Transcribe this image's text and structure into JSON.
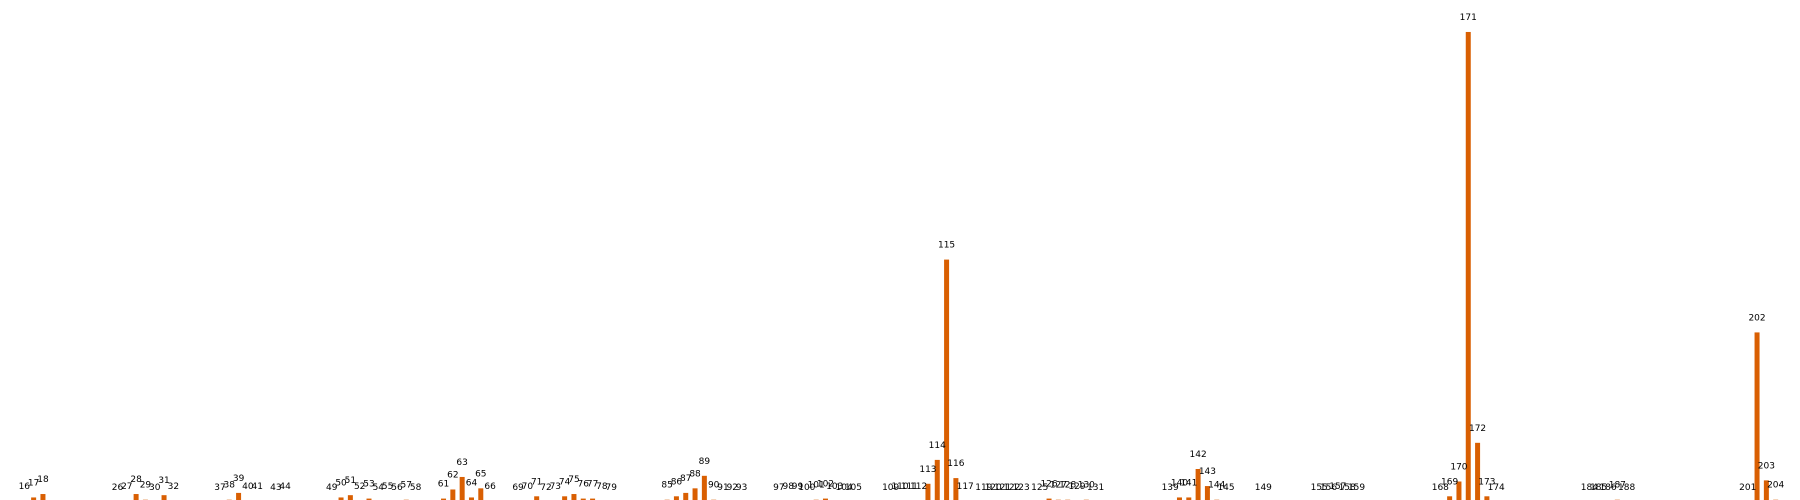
{
  "chart_data": {
    "type": "bar",
    "title": "",
    "xlabel": "",
    "ylabel": "",
    "grid": false,
    "legend": "none",
    "color": "#d95f02",
    "x_range": [
      15,
      205
    ],
    "ylim": [
      0,
      420
    ],
    "points": [
      {
        "x": 16,
        "label": "16",
        "value": 1
      },
      {
        "x": 17,
        "label": "17",
        "value": 4
      },
      {
        "x": 18,
        "label": "18",
        "value": 7
      },
      {
        "x": 26,
        "label": "26",
        "value": 0
      },
      {
        "x": 27,
        "label": "27",
        "value": 1
      },
      {
        "x": 28,
        "label": "28",
        "value": 7
      },
      {
        "x": 29,
        "label": "29",
        "value": 2
      },
      {
        "x": 30,
        "label": "30",
        "value": 0
      },
      {
        "x": 31,
        "label": "31",
        "value": 6
      },
      {
        "x": 32,
        "label": "32",
        "value": 1
      },
      {
        "x": 37,
        "label": "37",
        "value": 0
      },
      {
        "x": 38,
        "label": "38",
        "value": 2
      },
      {
        "x": 39,
        "label": "39",
        "value": 8
      },
      {
        "x": 40,
        "label": "40",
        "value": 1
      },
      {
        "x": 41,
        "label": "41",
        "value": 1
      },
      {
        "x": 43,
        "label": "43",
        "value": 0
      },
      {
        "x": 44,
        "label": "44",
        "value": 1
      },
      {
        "x": 49,
        "label": "49",
        "value": 0
      },
      {
        "x": 50,
        "label": "50",
        "value": 4
      },
      {
        "x": 51,
        "label": "51",
        "value": 6
      },
      {
        "x": 52,
        "label": "52",
        "value": 1
      },
      {
        "x": 53,
        "label": "53",
        "value": 3
      },
      {
        "x": 54,
        "label": "54",
        "value": 0
      },
      {
        "x": 55,
        "label": "55",
        "value": 1
      },
      {
        "x": 56,
        "label": "56",
        "value": 0
      },
      {
        "x": 57,
        "label": "57",
        "value": 2
      },
      {
        "x": 58,
        "label": "58",
        "value": 0
      },
      {
        "x": 61,
        "label": "61",
        "value": 3
      },
      {
        "x": 62,
        "label": "62",
        "value": 11
      },
      {
        "x": 63,
        "label": "63",
        "value": 22
      },
      {
        "x": 64,
        "label": "64",
        "value": 4
      },
      {
        "x": 65,
        "label": "65",
        "value": 12
      },
      {
        "x": 66,
        "label": "66",
        "value": 1
      },
      {
        "x": 69,
        "label": "69",
        "value": 0
      },
      {
        "x": 70,
        "label": "70",
        "value": 1
      },
      {
        "x": 71,
        "label": "71",
        "value": 5
      },
      {
        "x": 72,
        "label": "72",
        "value": 0
      },
      {
        "x": 73,
        "label": "73",
        "value": 1
      },
      {
        "x": 74,
        "label": "74",
        "value": 5
      },
      {
        "x": 75,
        "label": "75",
        "value": 7
      },
      {
        "x": 76,
        "label": "76",
        "value": 3
      },
      {
        "x": 77,
        "label": "77",
        "value": 3
      },
      {
        "x": 78,
        "label": "78",
        "value": 1
      },
      {
        "x": 79,
        "label": "79",
        "value": 0
      },
      {
        "x": 85,
        "label": "85",
        "value": 2
      },
      {
        "x": 86,
        "label": "86",
        "value": 5
      },
      {
        "x": 87,
        "label": "87",
        "value": 8
      },
      {
        "x": 88,
        "label": "88",
        "value": 12
      },
      {
        "x": 89,
        "label": "89",
        "value": 23
      },
      {
        "x": 90,
        "label": "90",
        "value": 2
      },
      {
        "x": 91,
        "label": "91",
        "value": 0
      },
      {
        "x": 92,
        "label": "92",
        "value": 0
      },
      {
        "x": 93,
        "label": "93",
        "value": 0
      },
      {
        "x": 97,
        "label": "97",
        "value": 0
      },
      {
        "x": 98,
        "label": "98",
        "value": 1
      },
      {
        "x": 99,
        "label": "99",
        "value": 1
      },
      {
        "x": 100,
        "label": "100",
        "value": 0
      },
      {
        "x": 101,
        "label": "101",
        "value": 2
      },
      {
        "x": 102,
        "label": "102",
        "value": 3
      },
      {
        "x": 103,
        "label": "103",
        "value": 1
      },
      {
        "x": 104,
        "label": "104",
        "value": 0
      },
      {
        "x": 105,
        "label": "105",
        "value": 0
      },
      {
        "x": 109,
        "label": "109",
        "value": 0
      },
      {
        "x": 110,
        "label": "110",
        "value": 1
      },
      {
        "x": 111,
        "label": "111",
        "value": 1
      },
      {
        "x": 112,
        "label": "112",
        "value": 1
      },
      {
        "x": 113,
        "label": "113",
        "value": 16
      },
      {
        "x": 114,
        "label": "114",
        "value": 37
      },
      {
        "x": 115,
        "label": "115",
        "value": 213
      },
      {
        "x": 116,
        "label": "116",
        "value": 21
      },
      {
        "x": 117,
        "label": "117",
        "value": 1
      },
      {
        "x": 119,
        "label": "119",
        "value": 0
      },
      {
        "x": 120,
        "label": "120",
        "value": 0
      },
      {
        "x": 121,
        "label": "121",
        "value": 0
      },
      {
        "x": 122,
        "label": "122",
        "value": 0
      },
      {
        "x": 123,
        "label": "123",
        "value": 0
      },
      {
        "x": 125,
        "label": "125",
        "value": 0
      },
      {
        "x": 126,
        "label": "126",
        "value": 3
      },
      {
        "x": 127,
        "label": "127",
        "value": 2
      },
      {
        "x": 128,
        "label": "128",
        "value": 2
      },
      {
        "x": 129,
        "label": "129",
        "value": 1
      },
      {
        "x": 130,
        "label": "130",
        "value": 2
      },
      {
        "x": 131,
        "label": "131",
        "value": 0
      },
      {
        "x": 139,
        "label": "139",
        "value": 0
      },
      {
        "x": 140,
        "label": "140",
        "value": 4
      },
      {
        "x": 141,
        "label": "141",
        "value": 4
      },
      {
        "x": 142,
        "label": "142",
        "value": 29
      },
      {
        "x": 143,
        "label": "143",
        "value": 14
      },
      {
        "x": 144,
        "label": "144",
        "value": 2
      },
      {
        "x": 145,
        "label": "145",
        "value": 0
      },
      {
        "x": 149,
        "label": "149",
        "value": 0
      },
      {
        "x": 155,
        "label": "155",
        "value": 0
      },
      {
        "x": 156,
        "label": "156",
        "value": 0
      },
      {
        "x": 157,
        "label": "157",
        "value": 1
      },
      {
        "x": 158,
        "label": "158",
        "value": 0
      },
      {
        "x": 159,
        "label": "159",
        "value": 0
      },
      {
        "x": 168,
        "label": "168",
        "value": 0
      },
      {
        "x": 169,
        "label": "169",
        "value": 5
      },
      {
        "x": 170,
        "label": "170",
        "value": 18
      },
      {
        "x": 171,
        "label": "171",
        "value": 413
      },
      {
        "x": 172,
        "label": "172",
        "value": 52
      },
      {
        "x": 173,
        "label": "173",
        "value": 5
      },
      {
        "x": 174,
        "label": "174",
        "value": 0
      },
      {
        "x": 184,
        "label": "184",
        "value": 0
      },
      {
        "x": 185,
        "label": "185",
        "value": 0
      },
      {
        "x": 186,
        "label": "186",
        "value": 0
      },
      {
        "x": 187,
        "label": "187",
        "value": 2
      },
      {
        "x": 188,
        "label": "188",
        "value": 0
      },
      {
        "x": 201,
        "label": "201",
        "value": 0
      },
      {
        "x": 202,
        "label": "202",
        "value": 149
      },
      {
        "x": 203,
        "label": "203",
        "value": 19
      },
      {
        "x": 204,
        "label": "204",
        "value": 2
      }
    ]
  }
}
